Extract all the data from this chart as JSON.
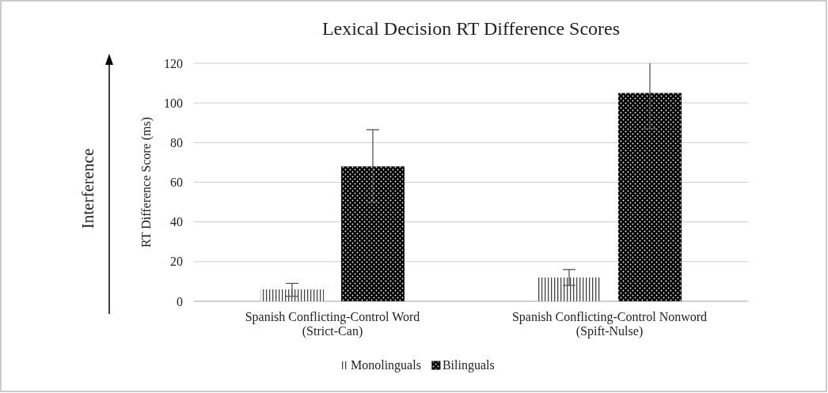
{
  "chart_data": {
    "type": "bar",
    "title": "Lexical Decision RT Difference Scores",
    "ylabel": "RT Difference Score (ms)",
    "categories": [
      "Spanish Conflicting-Control Word\n(Strict-Can)",
      "Spanish Conflicting-Control Nonword\n(Spift-Nulse)"
    ],
    "series": [
      {
        "name": "Monolinguals",
        "color": "#444444",
        "values": [
          6,
          12
        ],
        "errors": [
          [
            2.5,
            9
          ],
          [
            8,
            16
          ]
        ]
      },
      {
        "name": "Bilinguals",
        "color": "#000000",
        "values": [
          68,
          105
        ],
        "errors": [
          [
            50,
            86.5
          ],
          [
            87,
            120
          ]
        ]
      }
    ],
    "ylim": [
      0,
      120
    ],
    "yticks": [
      0,
      20,
      40,
      60,
      80,
      100,
      120
    ],
    "grid": "y",
    "legend": "bottom",
    "annotations": [
      "Interference"
    ]
  }
}
